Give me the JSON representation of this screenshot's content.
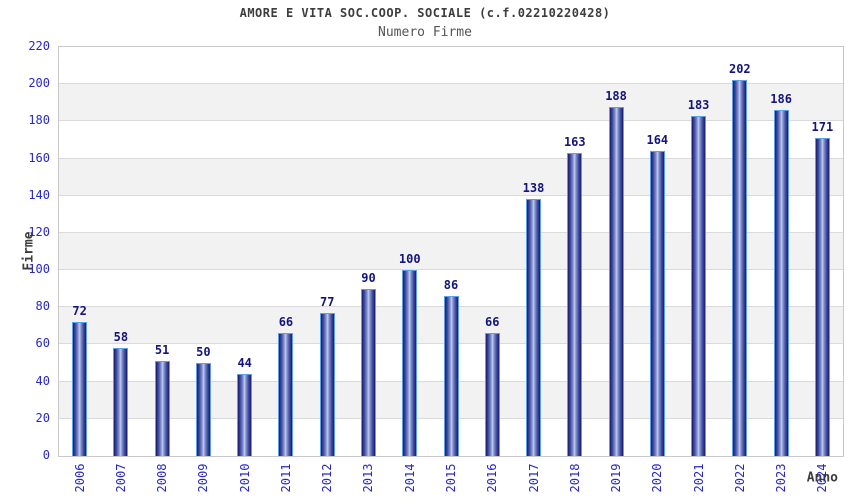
{
  "header": {
    "title": "AMORE E VITA SOC.COOP. SOCIALE (c.f.02210220428)",
    "subtitle": "Numero Firme"
  },
  "chart_data": {
    "type": "bar",
    "title": "AMORE E VITA SOC.COOP. SOCIALE (c.f.02210220428)",
    "subtitle": "Numero Firme",
    "xlabel": "Anno",
    "ylabel": "Firme",
    "categories": [
      "2006",
      "2007",
      "2008",
      "2009",
      "2010",
      "2011",
      "2012",
      "2013",
      "2014",
      "2015",
      "2016",
      "2017",
      "2018",
      "2019",
      "2020",
      "2021",
      "2022",
      "2023",
      "2024"
    ],
    "values": [
      72,
      58,
      51,
      50,
      44,
      66,
      77,
      90,
      100,
      86,
      66,
      138,
      163,
      188,
      164,
      183,
      202,
      186,
      171
    ],
    "ylim": [
      0,
      220
    ],
    "ytick_step": 20,
    "grid": "horizontal",
    "band_fill": "alternating",
    "legend": "none",
    "value_labels": "above-bars"
  },
  "colors": {
    "axis_text": "#2727cc",
    "value_label": "#14147e",
    "title_text": "#3d3d3d",
    "subtitle_text": "#555555",
    "bar_border": "#5ba0e8",
    "bar_dark": "#1b1b6e",
    "bar_mid": "#3e4a9c",
    "bar_light": "#c4cdea",
    "band_gray": "#f2f2f2",
    "band_white": "#ffffff",
    "gridline": "#dadada",
    "plot_border": "#c9c9c9"
  }
}
